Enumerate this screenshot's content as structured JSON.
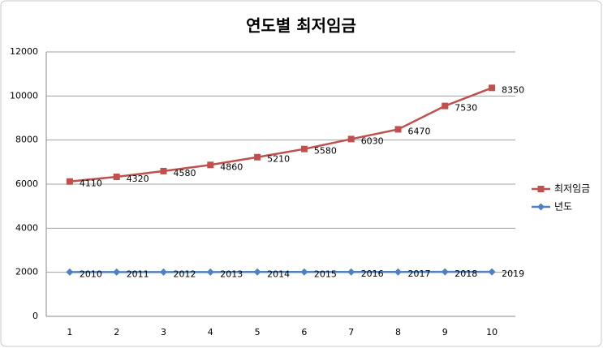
{
  "chart_data": {
    "type": "line",
    "stacked": true,
    "title": "연도별 최저임금",
    "categories": [
      "1",
      "2",
      "3",
      "4",
      "5",
      "6",
      "7",
      "8",
      "9",
      "10"
    ],
    "series": [
      {
        "name": "최저임금",
        "color": "#c0504d",
        "marker": "square",
        "values": [
          4110,
          4320,
          4580,
          4860,
          5210,
          5580,
          6030,
          6470,
          7530,
          8350
        ]
      },
      {
        "name": "년도",
        "color": "#4f81bd",
        "marker": "diamond",
        "values": [
          2010,
          2011,
          2012,
          2013,
          2014,
          2015,
          2016,
          2017,
          2018,
          2019
        ]
      }
    ],
    "ylim": [
      0,
      12000
    ],
    "yticks": [
      0,
      2000,
      4000,
      6000,
      8000,
      10000,
      12000
    ],
    "grid": true,
    "legend": "right"
  }
}
